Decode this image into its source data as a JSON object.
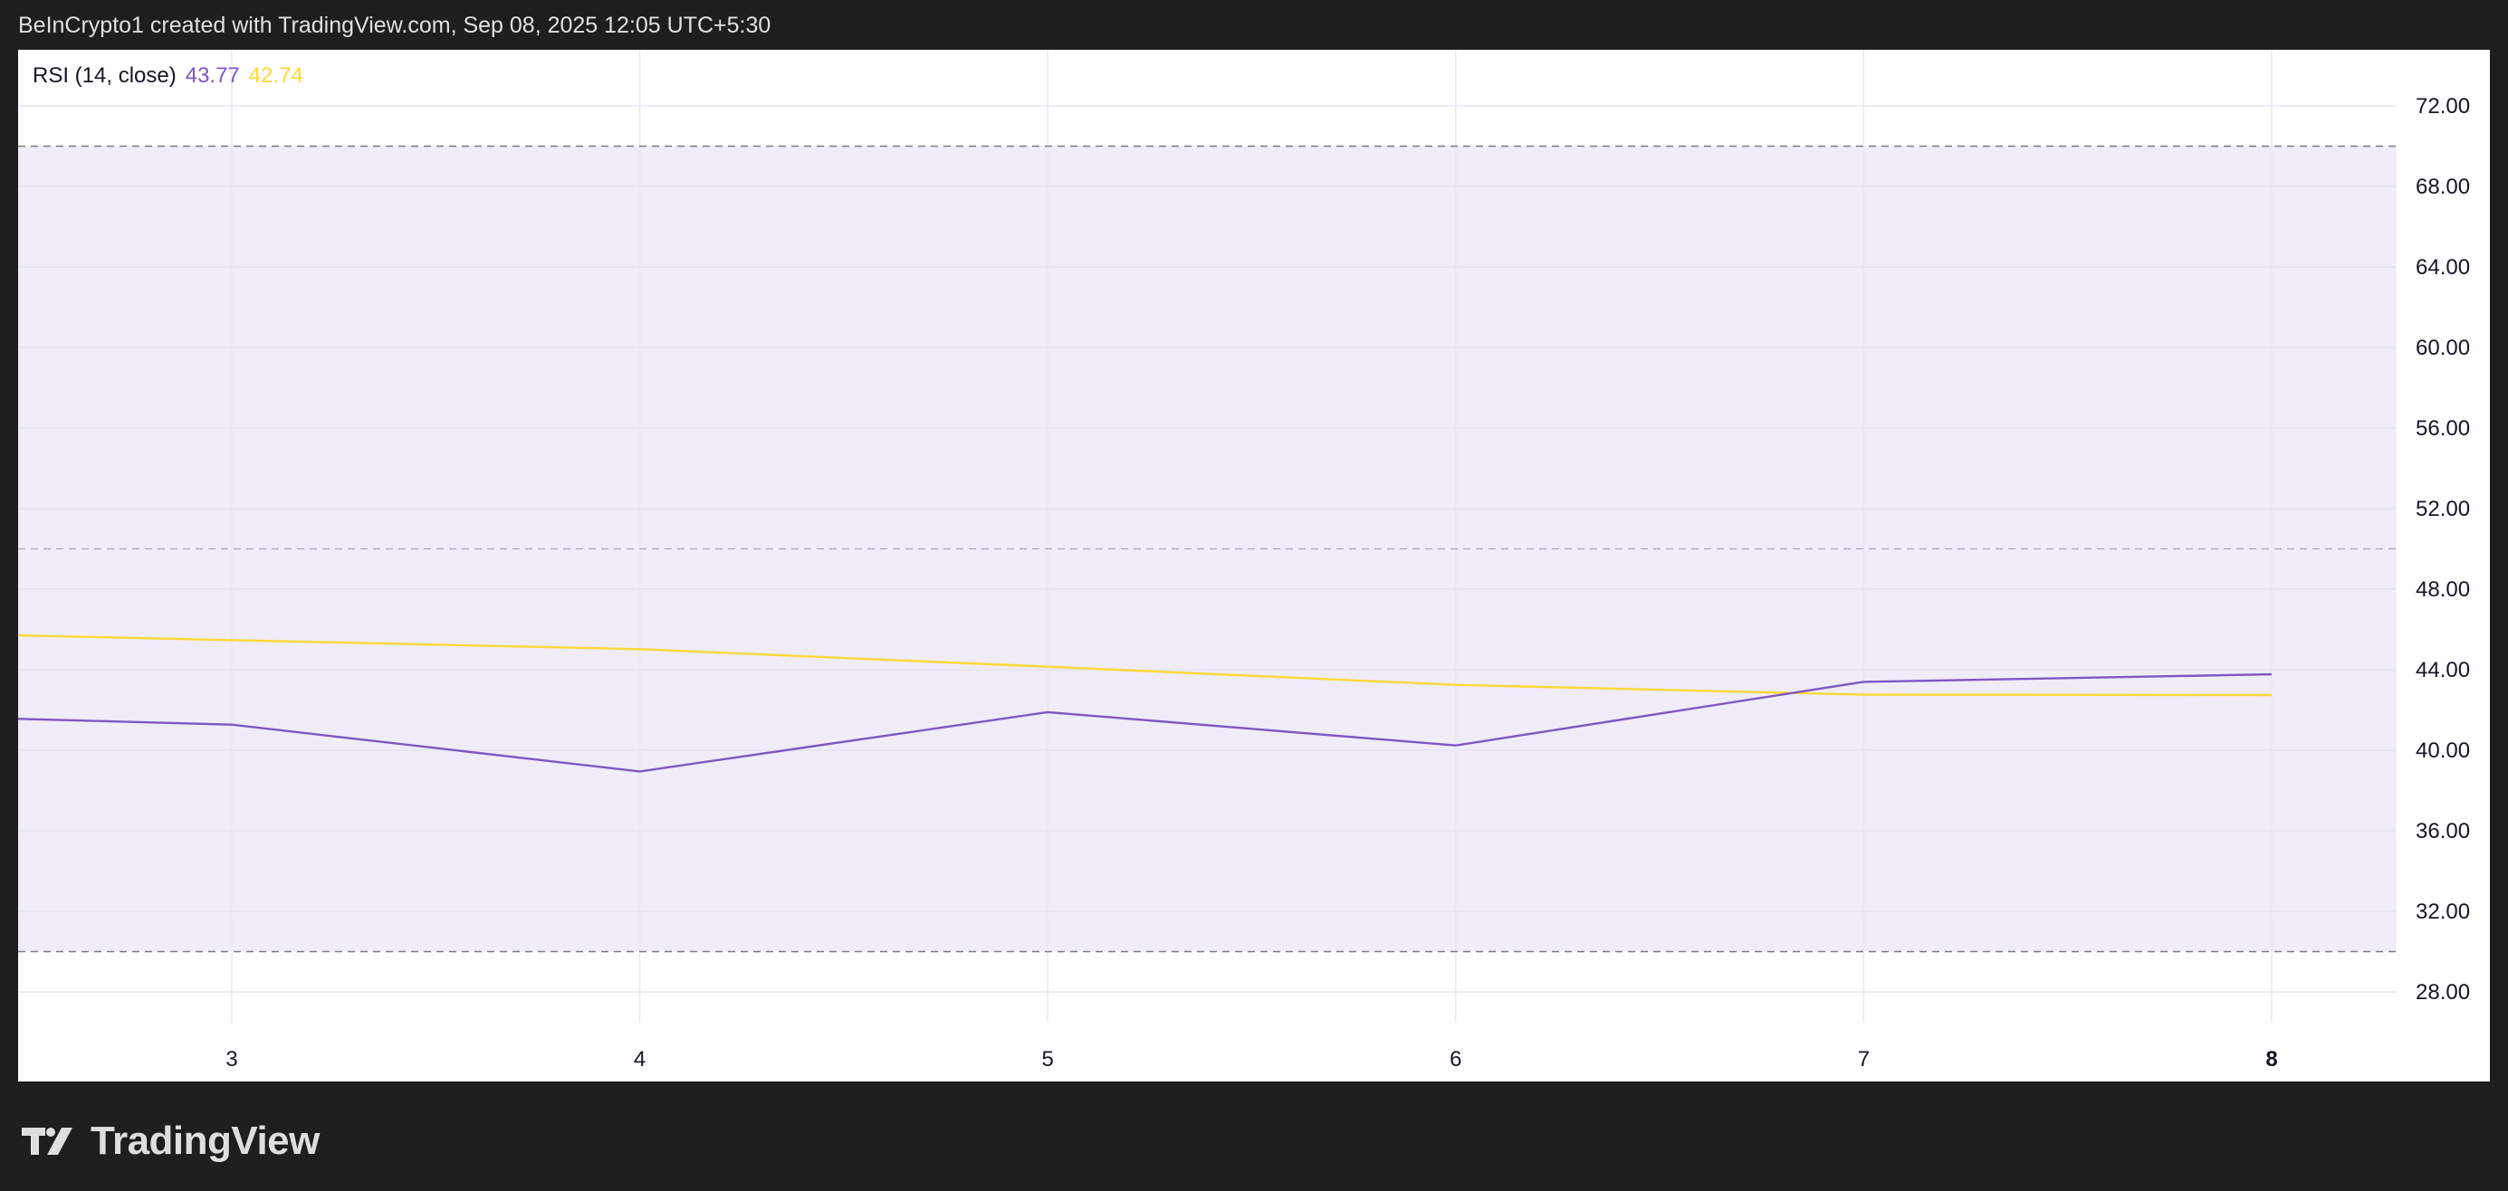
{
  "header": {
    "text": "BeInCrypto1 created with TradingView.com, Sep 08, 2025 12:05 UTC+5:30"
  },
  "legend": {
    "indicator": "RSI (14, close)",
    "rsi_value": "43.77",
    "ma_value": "42.74"
  },
  "footer": {
    "brand": "TradingView",
    "logo_icon": "tradingview-logo-icon"
  },
  "colors": {
    "rsi": "#7e57c2",
    "ma": "#fdd835",
    "band": "#f0ecf8",
    "band_lines": "#787b86",
    "frame": "#1e1e1e"
  },
  "chart_data": {
    "type": "line",
    "x": [
      2,
      3,
      4,
      5,
      6,
      7,
      8
    ],
    "series": [
      {
        "name": "RSI",
        "values": [
          41.82,
          41.27,
          38.95,
          41.89,
          40.24,
          43.4,
          43.77
        ],
        "color": "#7e57c2"
      },
      {
        "name": "RSI-based MA",
        "values": [
          45.92,
          45.47,
          45.02,
          44.15,
          43.25,
          42.76,
          42.74
        ],
        "color": "#fdd835"
      }
    ],
    "x_ticks": [
      "3",
      "4",
      "5",
      "6",
      "7",
      "8"
    ],
    "y_ticks": [
      "28.00",
      "32.00",
      "36.00",
      "40.00",
      "44.00",
      "48.00",
      "52.00",
      "56.00",
      "60.00",
      "64.00",
      "68.00",
      "72.00"
    ],
    "ylim": [
      26,
      75
    ],
    "xlim": [
      2.47,
      8.3
    ],
    "bands": {
      "upper": 70,
      "middle": 50,
      "lower": 30
    },
    "grid": true
  }
}
